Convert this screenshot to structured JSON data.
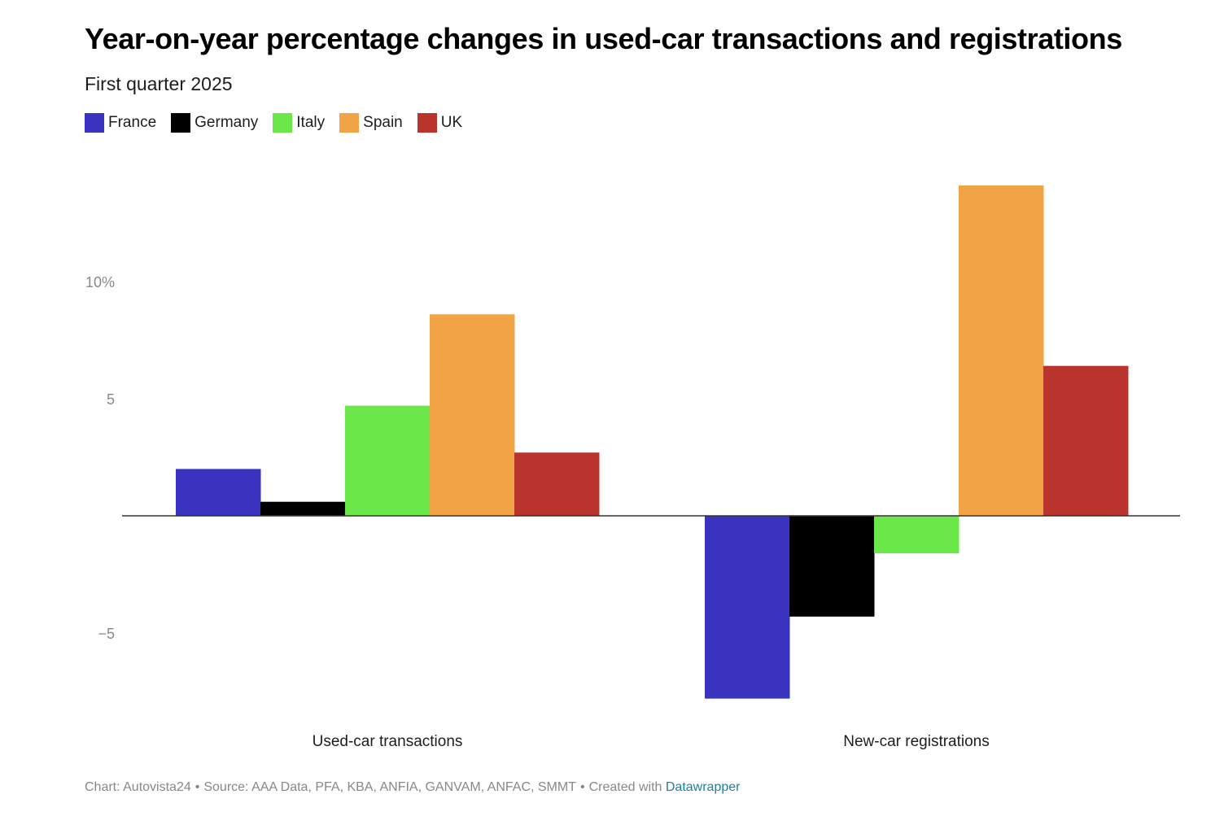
{
  "title": "Year-on-year percentage changes in used-car transactions and registrations",
  "subtitle": "First quarter 2025",
  "footer": {
    "chart_credit": "Chart: Autovista24",
    "source": "Source: AAA Data, PFA, KBA, ANFIA, GANVAM, ANFAC, SMMT",
    "created_with": "Created with",
    "tool": "Datawrapper",
    "separator": "•",
    "link_color": "#1d81a2"
  },
  "chart_data": {
    "type": "bar",
    "orientation": "vertical",
    "grouped": true,
    "categories": [
      "Used-car transactions",
      "New-car registrations"
    ],
    "series": [
      {
        "name": "France",
        "color": "#3a33bf",
        "values": [
          2.0,
          -7.8
        ]
      },
      {
        "name": "Germany",
        "color": "#000000",
        "values": [
          0.6,
          -4.3
        ]
      },
      {
        "name": "Italy",
        "color": "#6ae84a",
        "values": [
          4.7,
          -1.6
        ]
      },
      {
        "name": "Spain",
        "color": "#f0a446",
        "values": [
          8.6,
          14.1
        ]
      },
      {
        "name": "UK",
        "color": "#b9342d",
        "values": [
          2.7,
          6.4
        ]
      }
    ],
    "yticks": [
      {
        "value": 10,
        "label": "10%"
      },
      {
        "value": 5,
        "label": "5"
      },
      {
        "value": -5,
        "label": "−5"
      }
    ],
    "ylim": [
      -9,
      15
    ],
    "grid": false,
    "zero_line": true,
    "legend_position": "top-left"
  }
}
